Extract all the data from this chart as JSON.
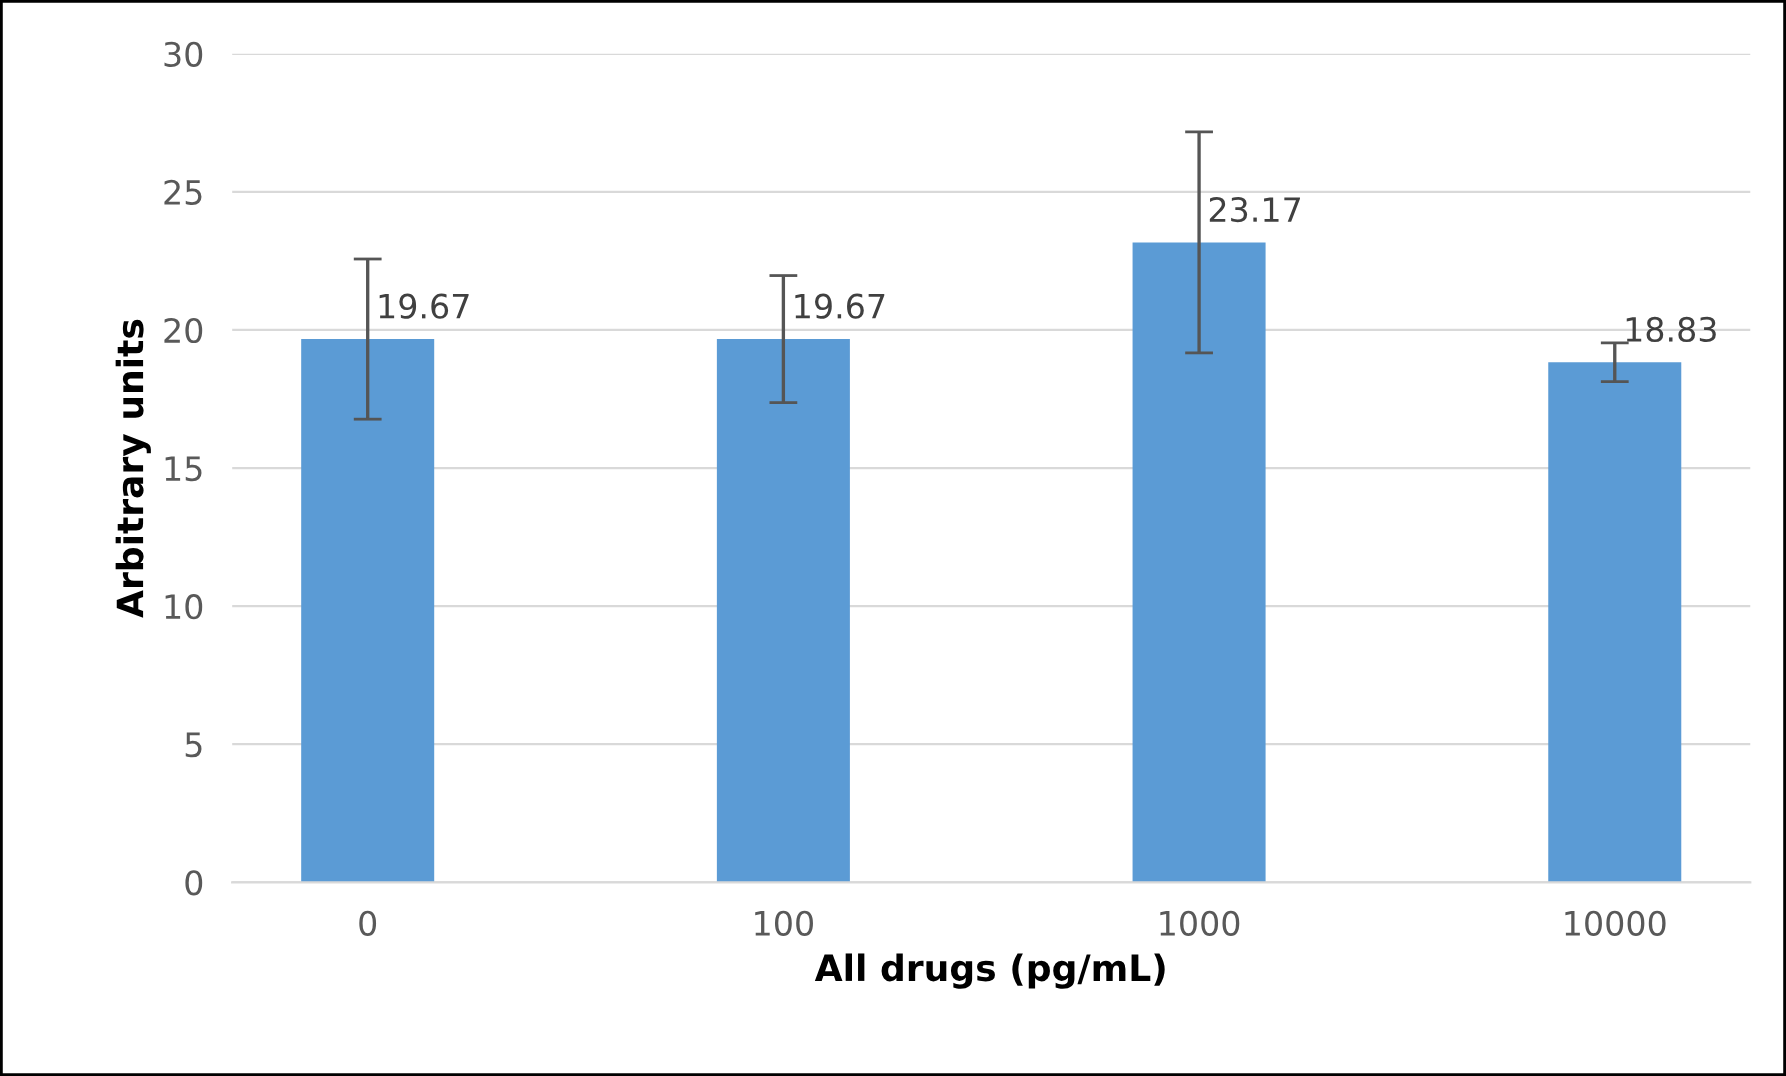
{
  "chart_data": {
    "type": "bar",
    "xlabel": "All drugs (pg/mL)",
    "ylabel": "Arbitrary units",
    "categories": [
      "0",
      "100",
      "1000",
      "10000"
    ],
    "values": [
      19.67,
      19.67,
      23.17,
      18.83
    ],
    "errors": [
      2.9,
      2.3,
      4.0,
      0.7
    ],
    "color": "#5b9bd5",
    "data_labels": true,
    "ylim": [
      0,
      30
    ],
    "yticks": [
      0,
      5,
      10,
      15,
      20,
      25,
      30
    ],
    "grid": "y",
    "legend": false
  }
}
